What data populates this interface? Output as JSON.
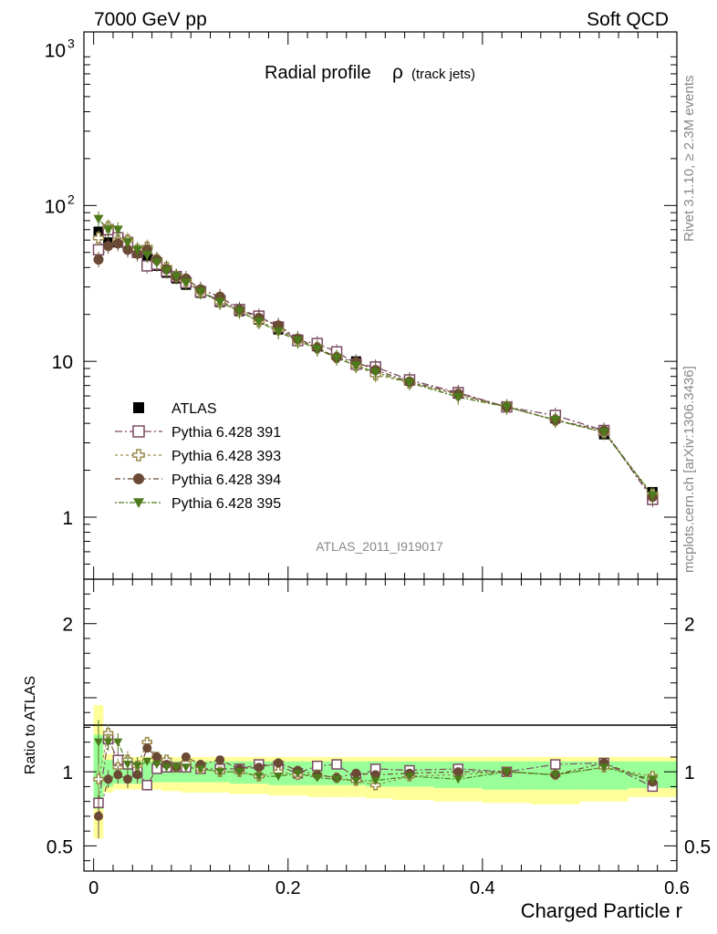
{
  "header": {
    "left": "7000 GeV pp",
    "right": "Soft QCD"
  },
  "side_labels": {
    "rivet": "Rivet 3.1.10, ≥ 2.3M events",
    "mcplots": "mcplots.cern.ch [arXiv:1306.3436]"
  },
  "chart_data": [
    {
      "type": "scatter",
      "title": "Radial profile",
      "title_symbol": "ρ",
      "title_suffix": "(track jets)",
      "watermark": "ATLAS_2011_I919017",
      "xlim": [
        -0.01,
        0.6
      ],
      "ylim": [
        0.4,
        1300
      ],
      "yscale": "log",
      "y_ticks": [
        {
          "v": 1,
          "label": "1"
        },
        {
          "v": 10,
          "label": "10"
        },
        {
          "v": 100,
          "label": "10",
          "sup": "2"
        },
        {
          "v": 1000,
          "label": "10",
          "sup": "3"
        }
      ],
      "legend_position": "middle-left",
      "x": [
        0.005,
        0.015,
        0.025,
        0.035,
        0.045,
        0.055,
        0.065,
        0.075,
        0.085,
        0.095,
        0.11,
        0.13,
        0.15,
        0.17,
        0.19,
        0.21,
        0.23,
        0.25,
        0.27,
        0.29,
        0.325,
        0.375,
        0.425,
        0.475,
        0.525,
        0.575
      ],
      "series": [
        {
          "name": "ATLAS",
          "marker": "square-filled",
          "color": "#000000",
          "values": [
            68,
            58,
            58,
            55,
            50,
            45,
            41,
            37,
            34,
            31,
            27.5,
            24,
            21,
            18.5,
            16,
            13.8,
            12.5,
            11,
            10,
            9,
            7.5,
            6.2,
            5.1,
            4.3,
            3.4,
            1.45
          ]
        },
        {
          "name": "Pythia 6.428 391",
          "marker": "square-open",
          "color": "#7a4a63",
          "values": [
            52,
            70,
            62,
            58,
            50,
            41,
            42,
            38,
            35,
            32,
            28,
            24.5,
            21.5,
            19.5,
            16.6,
            13.6,
            13,
            11.5,
            9.6,
            9.2,
            7.6,
            6.3,
            5.1,
            4.5,
            3.6,
            1.3
          ]
        },
        {
          "name": "Pythia 6.428 393",
          "marker": "cross-open",
          "color": "#9a8a4a",
          "values": [
            62,
            73,
            60,
            60,
            52,
            54,
            45,
            40,
            35,
            33,
            28,
            24,
            21,
            18,
            16,
            13.5,
            12.2,
            10.6,
            9.4,
            8.2,
            7.3,
            6.1,
            5.1,
            4.2,
            3.5,
            1.4
          ]
        },
        {
          "name": "Pythia 6.428 394",
          "marker": "circle-filled",
          "color": "#6b4a35",
          "values": [
            45,
            55,
            57,
            52,
            49,
            52,
            45,
            39,
            35,
            34,
            29,
            26,
            21.5,
            19,
            17,
            14,
            12.2,
            10.6,
            9.9,
            8.8,
            7.4,
            6.2,
            5.1,
            4.2,
            3.6,
            1.35
          ]
        },
        {
          "name": "Pythia 6.428 395",
          "marker": "triangle-down-filled",
          "color": "#4d7a1a",
          "values": [
            82,
            70,
            70,
            58,
            52,
            48,
            43,
            38,
            35,
            32,
            28,
            24,
            21,
            18,
            15.5,
            13.6,
            12,
            10.5,
            9.4,
            8.5,
            7.3,
            5.9,
            5.1,
            4.2,
            3.5,
            1.38
          ]
        }
      ]
    },
    {
      "type": "scatter",
      "ylabel": "Ratio to ATLAS",
      "xlabel": "Charged Particle r",
      "xlim": [
        -0.01,
        0.6
      ],
      "ylim": [
        0.33,
        2.3
      ],
      "x_ticks": [
        0,
        0.2,
        0.4,
        0.6
      ],
      "x_tick_labels": [
        "0",
        "0.2",
        "0.4",
        "0.6"
      ],
      "y_ticks": [
        0.5,
        1,
        2
      ],
      "y_tick_labels": [
        "0.5",
        "1",
        "2"
      ],
      "band_yellow": {
        "lower": [
          0.55,
          0.86,
          0.88,
          0.88,
          0.88,
          0.88,
          0.88,
          0.87,
          0.87,
          0.86,
          0.86,
          0.86,
          0.85,
          0.85,
          0.84,
          0.84,
          0.83,
          0.83,
          0.83,
          0.82,
          0.81,
          0.8,
          0.79,
          0.78,
          0.8,
          0.83
        ],
        "upper": [
          1.45,
          1.12,
          1.1,
          1.1,
          1.1,
          1.1,
          1.1,
          1.1,
          1.1,
          1.1,
          1.1,
          1.1,
          1.1,
          1.1,
          1.1,
          1.1,
          1.1,
          1.1,
          1.1,
          1.1,
          1.1,
          1.1,
          1.1,
          1.1,
          1.1,
          1.1
        ]
      },
      "band_green": {
        "lower": [
          0.75,
          0.9,
          0.92,
          0.92,
          0.92,
          0.93,
          0.93,
          0.93,
          0.93,
          0.93,
          0.93,
          0.93,
          0.92,
          0.92,
          0.91,
          0.91,
          0.91,
          0.91,
          0.91,
          0.9,
          0.9,
          0.89,
          0.88,
          0.88,
          0.88,
          0.89
        ],
        "upper": [
          1.25,
          1.08,
          1.07,
          1.07,
          1.07,
          1.07,
          1.07,
          1.07,
          1.07,
          1.07,
          1.07,
          1.07,
          1.07,
          1.07,
          1.07,
          1.07,
          1.07,
          1.07,
          1.07,
          1.07,
          1.07,
          1.07,
          1.07,
          1.07,
          1.07,
          1.07
        ]
      },
      "series": [
        {
          "name": "Pythia 6.428 391",
          "values": [
            0.79,
            1.22,
            1.08,
            1.05,
            1.0,
            0.91,
            1.02,
            1.03,
            1.03,
            1.03,
            1.02,
            1.02,
            1.02,
            1.05,
            1.04,
            0.99,
            1.04,
            1.05,
            0.96,
            1.02,
            1.01,
            1.02,
            1.0,
            1.05,
            1.06,
            0.9
          ]
        },
        {
          "name": "Pythia 6.428 393",
          "values": [
            0.95,
            1.26,
            1.03,
            1.08,
            1.04,
            1.2,
            1.1,
            1.08,
            1.03,
            1.06,
            1.02,
            1.0,
            1.0,
            0.97,
            1.0,
            0.98,
            0.98,
            0.96,
            0.94,
            0.91,
            0.97,
            0.98,
            1.0,
            0.98,
            1.03,
            0.97
          ]
        },
        {
          "name": "Pythia 6.428 394",
          "values": [
            0.7,
            0.95,
            0.98,
            0.95,
            0.98,
            1.16,
            1.1,
            1.05,
            1.03,
            1.1,
            1.05,
            1.08,
            1.02,
            1.03,
            1.06,
            1.01,
            0.98,
            0.96,
            0.99,
            0.98,
            0.99,
            1.0,
            1.0,
            0.98,
            1.06,
            0.93
          ]
        },
        {
          "name": "Pythia 6.428 395",
          "values": [
            1.2,
            1.2,
            1.2,
            1.05,
            1.04,
            1.07,
            1.05,
            1.03,
            1.03,
            1.03,
            1.02,
            1.0,
            1.0,
            0.97,
            0.97,
            0.99,
            0.96,
            0.95,
            0.94,
            0.94,
            0.97,
            0.95,
            1.0,
            0.98,
            1.03,
            0.95
          ]
        }
      ]
    }
  ]
}
